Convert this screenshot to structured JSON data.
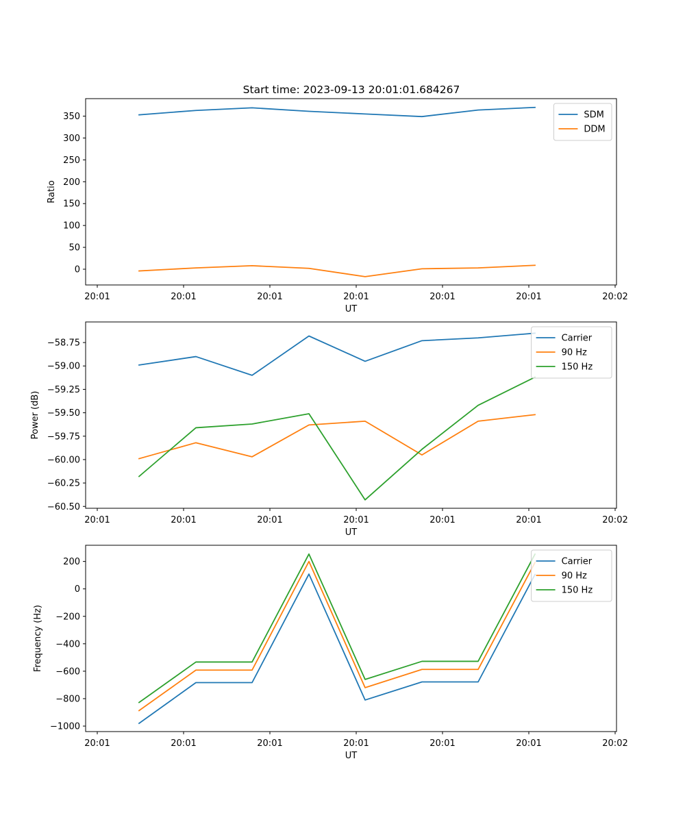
{
  "figure_title": "Start time: 2023-09-13 20:01:01.684267",
  "colors": {
    "blue": "#1f77b4",
    "orange": "#ff7f0e",
    "green": "#2ca02c"
  },
  "chart_data": [
    {
      "type": "line",
      "title": "Start time: 2023-09-13 20:01:01.684267",
      "xlabel": "UT",
      "ylabel": "Ratio",
      "x_tick_labels": [
        "20:01",
        "20:01",
        "20:01",
        "20:01",
        "20:01",
        "20:01",
        "20:02"
      ],
      "ylim": [
        -36,
        390
      ],
      "y_ticks": [
        0,
        50,
        100,
        150,
        200,
        250,
        300,
        350
      ],
      "y_tick_labels": [
        "0",
        "50",
        "100",
        "150",
        "200",
        "250",
        "300",
        "350"
      ],
      "legend_position": "top-right",
      "series": [
        {
          "name": "SDM",
          "color": "#1f77b4",
          "values": [
            353,
            363,
            369,
            361,
            355,
            349,
            364,
            370
          ]
        },
        {
          "name": "DDM",
          "color": "#ff7f0e",
          "values": [
            -4,
            3,
            8,
            2,
            -17,
            1,
            3,
            9
          ]
        }
      ]
    },
    {
      "type": "line",
      "xlabel": "UT",
      "ylabel": "Power (dB)",
      "x_tick_labels": [
        "20:01",
        "20:01",
        "20:01",
        "20:01",
        "20:01",
        "20:01",
        "20:02"
      ],
      "ylim": [
        -60.52,
        -58.53
      ],
      "y_ticks": [
        -60.5,
        -60.25,
        -60.0,
        -59.75,
        -59.5,
        -59.25,
        -59.0,
        -58.75
      ],
      "y_tick_labels": [
        "−60.50",
        "−60.25",
        "−60.00",
        "−59.75",
        "−59.50",
        "−59.25",
        "−59.00",
        "−58.75"
      ],
      "legend_position": "top-right",
      "series": [
        {
          "name": "Carrier",
          "color": "#1f77b4",
          "values": [
            -58.99,
            -58.9,
            -59.1,
            -58.68,
            -58.95,
            -58.73,
            -58.7,
            -58.65
          ]
        },
        {
          "name": "90 Hz",
          "color": "#ff7f0e",
          "values": [
            -59.99,
            -59.82,
            -59.97,
            -59.63,
            -59.59,
            -59.95,
            -59.59,
            -59.52
          ]
        },
        {
          "name": "150 Hz",
          "color": "#2ca02c",
          "values": [
            -60.18,
            -59.66,
            -59.62,
            -59.51,
            -60.43,
            -59.89,
            -59.42,
            -59.12
          ]
        }
      ]
    },
    {
      "type": "line",
      "xlabel": "UT",
      "ylabel": "Frequency (Hz)",
      "x_tick_labels": [
        "20:01",
        "20:01",
        "20:01",
        "20:01",
        "20:01",
        "20:01",
        "20:02"
      ],
      "ylim": [
        -1040,
        318
      ],
      "y_ticks": [
        -1000,
        -800,
        -600,
        -400,
        -200,
        0,
        200
      ],
      "y_tick_labels": [
        "−1000",
        "−800",
        "−600",
        "−400",
        "−200",
        "0",
        "200"
      ],
      "legend_position": "top-right",
      "series": [
        {
          "name": "Carrier",
          "color": "#1f77b4",
          "values": [
            -980,
            -683,
            -683,
            108,
            -810,
            -678,
            -678,
            105
          ]
        },
        {
          "name": "90 Hz",
          "color": "#ff7f0e",
          "values": [
            -887,
            -592,
            -592,
            200,
            -720,
            -587,
            -587,
            192
          ]
        },
        {
          "name": "150 Hz",
          "color": "#2ca02c",
          "values": [
            -828,
            -533,
            -533,
            254,
            -660,
            -528,
            -528,
            253
          ]
        }
      ]
    }
  ]
}
